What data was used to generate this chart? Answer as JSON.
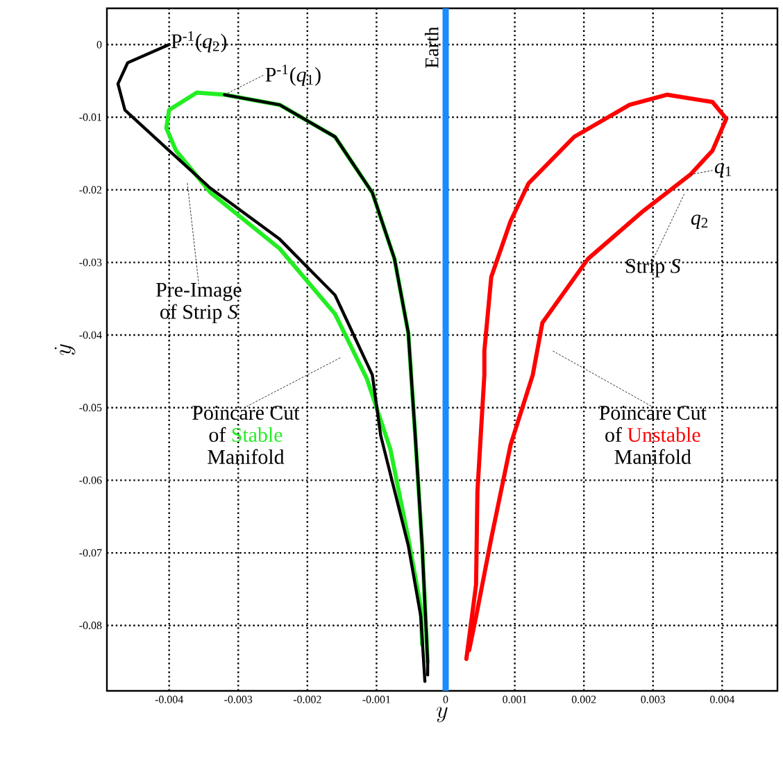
{
  "chart_data": {
    "type": "line",
    "xlabel": "y",
    "ylabel": "\\dot{y}",
    "xlim": [
      -0.0049,
      0.0048
    ],
    "ylim": [
      -0.089,
      0.005
    ],
    "xticks": [
      -0.004,
      -0.003,
      -0.002,
      -0.001,
      0,
      0.001,
      0.002,
      0.003,
      0.004
    ],
    "yticks": [
      -0.08,
      -0.07,
      -0.06,
      -0.05,
      -0.04,
      -0.03,
      -0.02,
      -0.01,
      0
    ],
    "grid": true,
    "marker": "none",
    "line_style": "solid",
    "series": [
      {
        "color": "#22ee22",
        "x": [
          -0.00034,
          -0.00036,
          -0.00054,
          -0.0008,
          -0.00114,
          -0.0016,
          -0.0024,
          -0.0034,
          -0.0039,
          -0.00404,
          -0.004,
          -0.0036,
          -0.0032,
          -0.0024,
          -0.0016,
          -0.00106,
          -0.00074,
          -0.00054,
          -0.00044,
          -0.00034,
          -0.00026
        ],
        "values": [
          -0.0826,
          -0.0775,
          -0.068,
          -0.0557,
          -0.046,
          -0.0371,
          -0.0281,
          -0.0204,
          -0.0146,
          -0.0115,
          -0.009,
          -0.0066,
          -0.0069,
          -0.0083,
          -0.0127,
          -0.0204,
          -0.0295,
          -0.0397,
          -0.0538,
          -0.069,
          -0.085
        ]
      },
      {
        "color": "#000000",
        "x": [
          -0.00026,
          -0.00026,
          -0.00034,
          -0.00044,
          -0.00054,
          -0.00074,
          -0.00106,
          -0.0016,
          -0.0024,
          -0.0032,
          null,
          -0.004,
          -0.0046,
          -0.00474,
          -0.00464,
          -0.004,
          -0.0034,
          -0.0024,
          -0.0016,
          -0.00106,
          -0.00094,
          -0.00054,
          -0.00036,
          -0.0003
        ],
        "values": [
          -0.0868,
          -0.085,
          -0.069,
          -0.0538,
          -0.0397,
          -0.0295,
          -0.0204,
          -0.0127,
          -0.0083,
          -0.0069,
          null,
          0.0,
          -0.0025,
          -0.0054,
          -0.009,
          -0.0146,
          -0.0198,
          -0.0268,
          -0.0345,
          -0.0455,
          -0.0538,
          -0.069,
          -0.0787,
          -0.0877
        ]
      },
      {
        "color": "#ff0000",
        "x": [
          0.0003,
          0.00044,
          0.00046,
          0.00056,
          0.00056,
          0.00066,
          0.00094,
          0.0012,
          0.00186,
          0.00266,
          0.0032,
          0.00386,
          0.00406,
          0.00386,
          0.00354,
          0.00286,
          0.00206,
          0.0014,
          0.00126,
          0.00094,
          0.00066,
          0.00044,
          0.00034
        ],
        "values": [
          -0.0846,
          -0.0744,
          -0.0615,
          -0.0455,
          -0.0422,
          -0.032,
          -0.0243,
          -0.0191,
          -0.0127,
          -0.0083,
          -0.0069,
          -0.0079,
          -0.0102,
          -0.0146,
          -0.0179,
          -0.0229,
          -0.0295,
          -0.0383,
          -0.0455,
          -0.0551,
          -0.068,
          -0.0788,
          -0.0834
        ]
      }
    ],
    "ref_lines": [
      {
        "axis": "x",
        "value": 0,
        "label": "Earth",
        "color": "#1a8cff"
      }
    ],
    "annotations": [
      {
        "text": "P$^{-1}$(*q*$_{2}$)",
        "x": -0.004,
        "y": 0.0
      },
      {
        "text": "P$^{-1}$(*q*$_{1}$)",
        "x": -0.0032,
        "y": -0.0069
      },
      {
        "text": "*q*$_{1}$",
        "x": 0.00354,
        "y": -0.0179
      },
      "*q*$_{2}$",
      "Strip *S*",
      "Pre-Image",
      "of Strip *S*",
      "Poincare Cut",
      "of",
      "Stable",
      "Manifold",
      "Poincare Cut",
      "of",
      "Unstable",
      "Manifold"
    ]
  }
}
